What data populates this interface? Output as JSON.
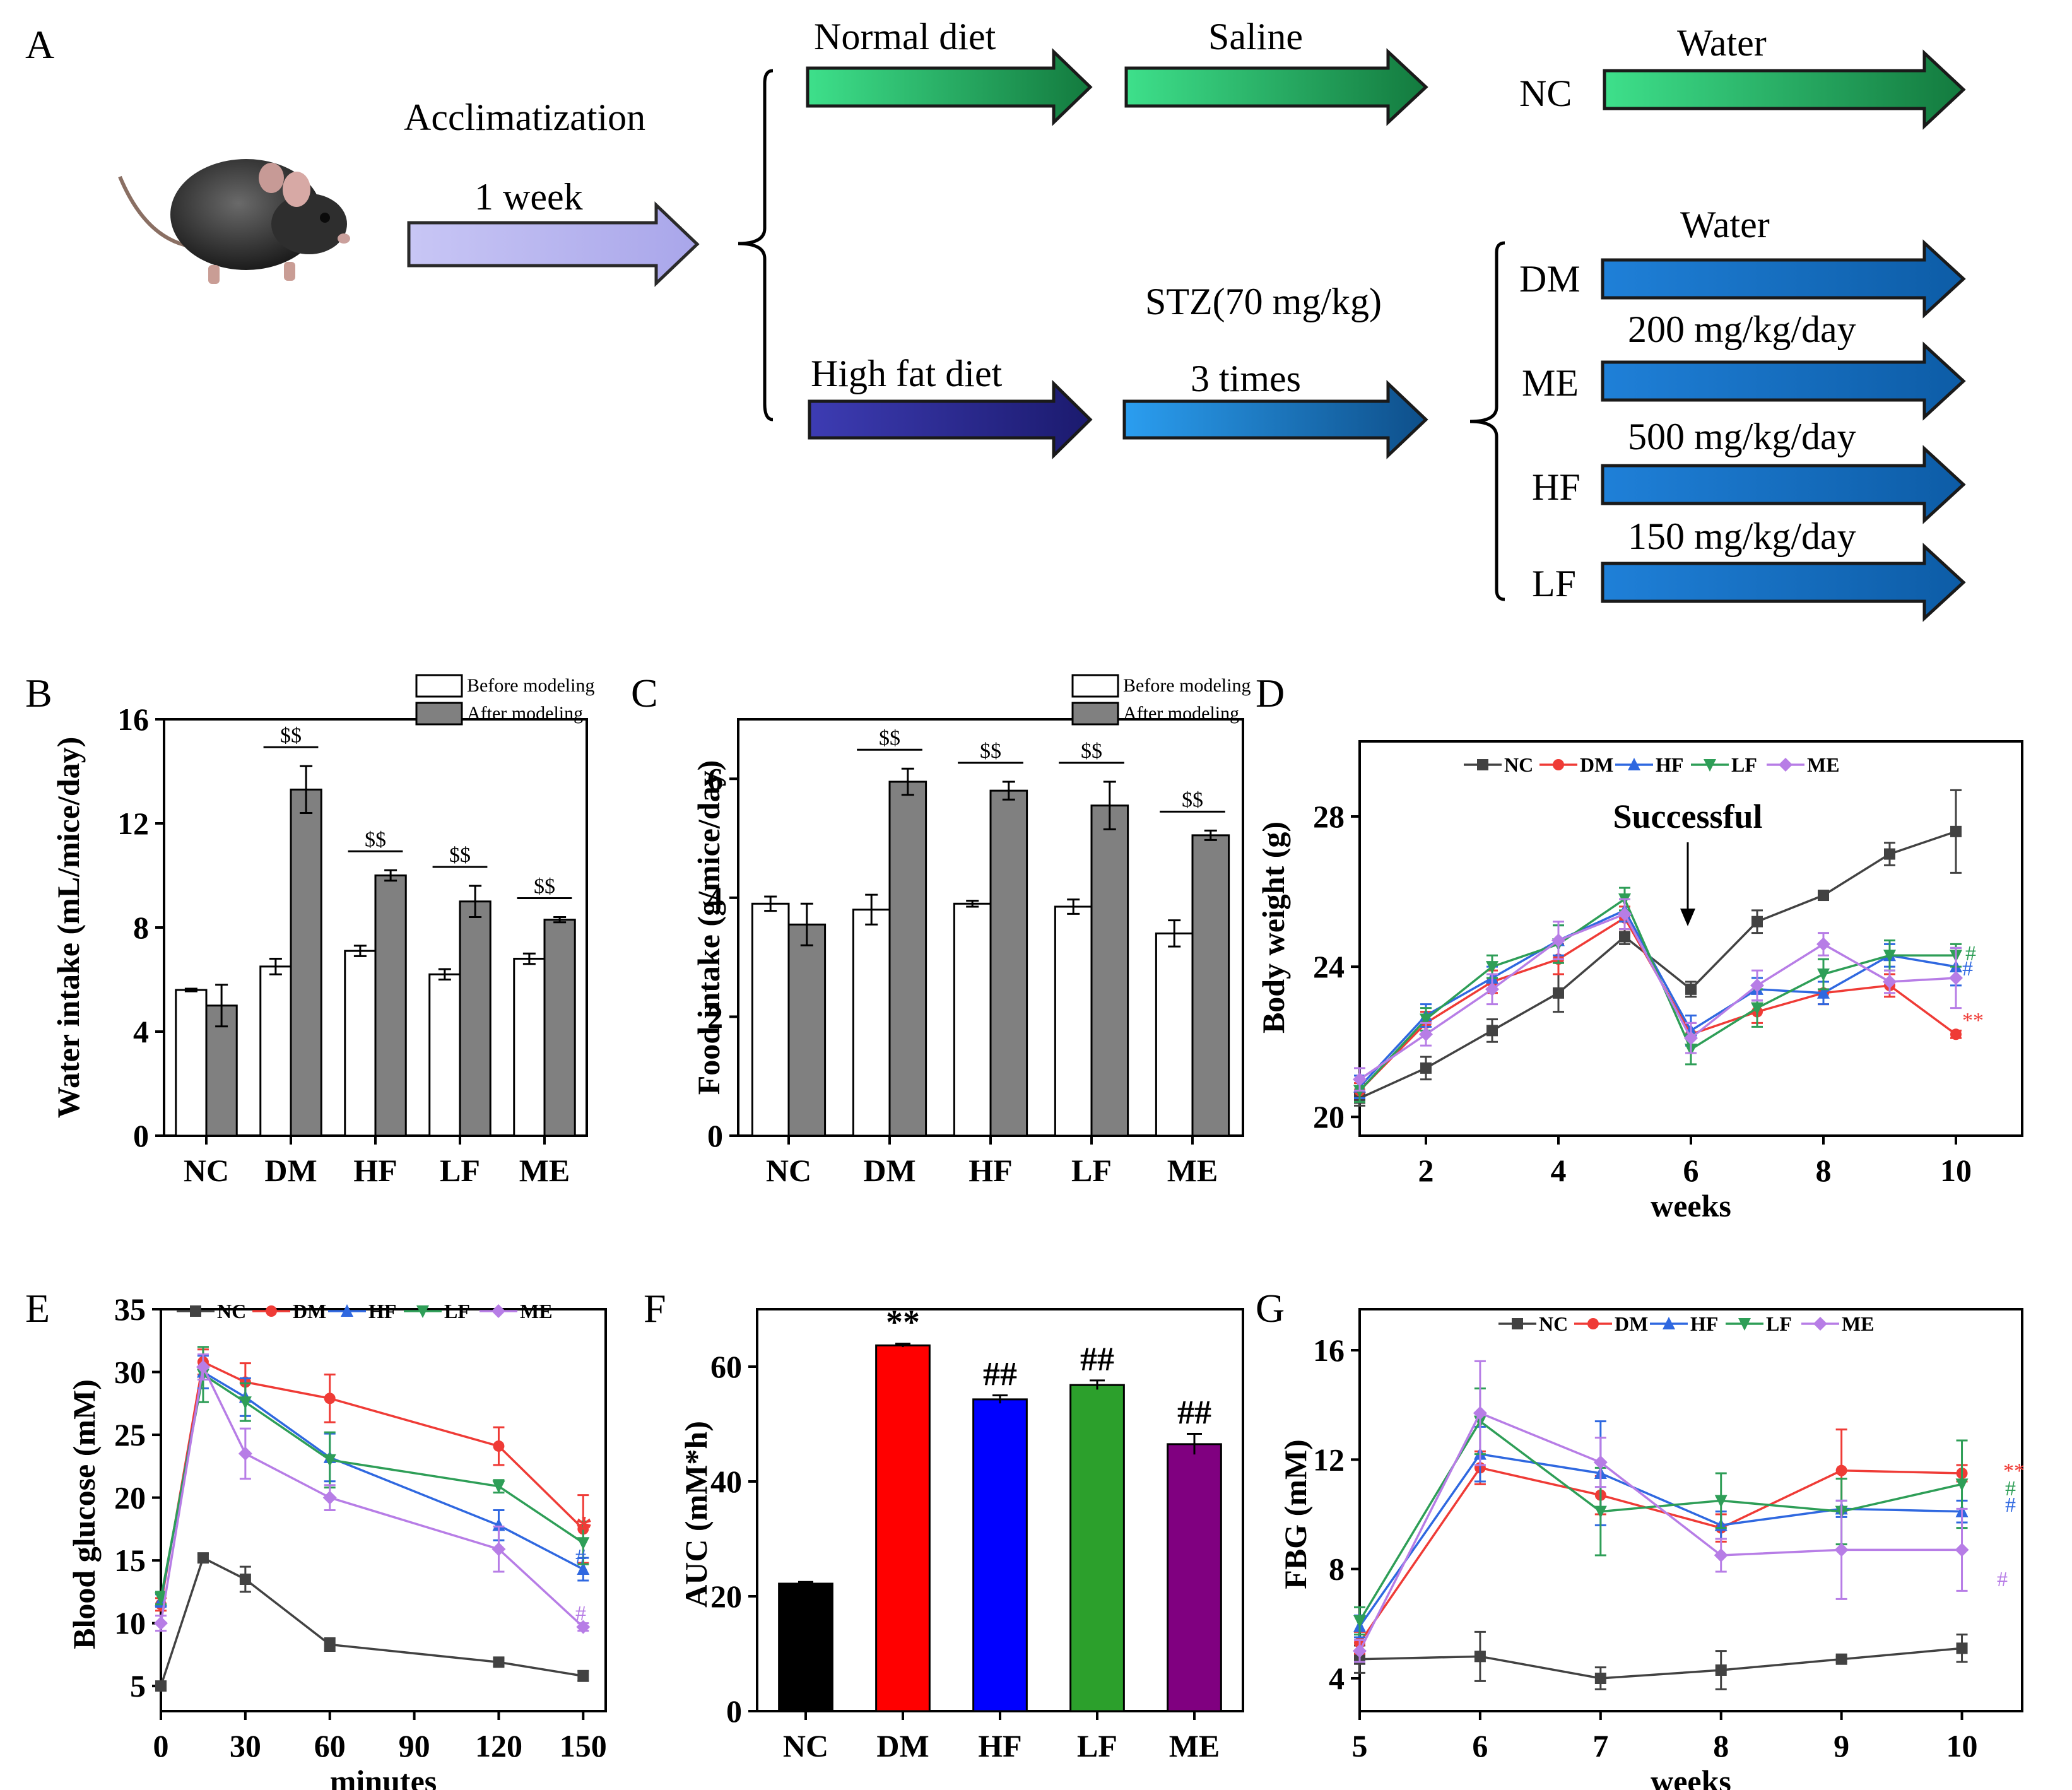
{
  "colors": {
    "NC": "#424242",
    "DM": "#ef3b36",
    "HF": "#2f68e0",
    "LF": "#2e9e57",
    "ME": "#b77de6",
    "green": "#27c16a",
    "navy": "#2b2a95",
    "blue": "#1c7fd1",
    "lav": "#b8b6ef"
  },
  "panelA": {
    "label": "A",
    "acclimatization": "Acclimatization",
    "week": "1 week",
    "normal_diet": "Normal diet",
    "saline": "Saline",
    "nc_label": "NC",
    "nc_water": "Water",
    "high_fat_diet": "High fat diet",
    "stz": "STZ(70 mg/kg)",
    "times": "3 times",
    "dm_water": "Water",
    "dose_me": "200 mg/kg/day",
    "dose_hf": "500 mg/kg/day",
    "dose_lf": "150 mg/kg/day",
    "groups": [
      "DM",
      "ME",
      "HF",
      "LF"
    ]
  },
  "chart_data": [
    {
      "id": "B",
      "type": "bar",
      "title": "",
      "xlabel": "",
      "ylabel": "Water intake (mL/mice/day)",
      "categories": [
        "NC",
        "DM",
        "HF",
        "LF",
        "ME"
      ],
      "ylim": [
        0,
        16
      ],
      "yticks": [
        0,
        4,
        8,
        12,
        16
      ],
      "legend": [
        "Before modeling",
        "After modeling"
      ],
      "series": [
        {
          "name": "Before modeling",
          "values": [
            5.6,
            6.5,
            7.1,
            6.2,
            6.8
          ],
          "err": [
            0.05,
            0.3,
            0.2,
            0.2,
            0.2
          ]
        },
        {
          "name": "After modeling",
          "values": [
            5.0,
            13.3,
            10.0,
            9.0,
            8.3
          ],
          "err": [
            0.8,
            0.9,
            0.2,
            0.6,
            0.1
          ]
        }
      ],
      "annotations": [
        "$$",
        "$$",
        "$$",
        "$$"
      ]
    },
    {
      "id": "C",
      "type": "bar",
      "title": "",
      "xlabel": "",
      "ylabel": "Food intake (g/mice/day)",
      "categories": [
        "NC",
        "DM",
        "HF",
        "LF",
        "ME"
      ],
      "ylim": [
        0,
        7
      ],
      "yticks": [
        0,
        2,
        4,
        6
      ],
      "legend": [
        "Before modeling",
        "After modeling"
      ],
      "series": [
        {
          "name": "Before modeling",
          "values": [
            3.9,
            3.8,
            3.9,
            3.85,
            3.4
          ],
          "err": [
            0.12,
            0.25,
            0.05,
            0.12,
            0.22
          ]
        },
        {
          "name": "After modeling",
          "values": [
            3.55,
            5.95,
            5.8,
            5.55,
            5.05
          ],
          "err": [
            0.35,
            0.22,
            0.15,
            0.4,
            0.08
          ]
        }
      ],
      "annotations": [
        "$$",
        "$$",
        "$$",
        "$$"
      ]
    },
    {
      "id": "D",
      "type": "line",
      "title": "",
      "xlabel": "weeks",
      "ylabel": "Body weight (g)",
      "xlim": [
        1,
        11
      ],
      "ylim": [
        19.5,
        30
      ],
      "xticks": [
        2,
        4,
        6,
        8,
        10
      ],
      "yticks": [
        20,
        24,
        28
      ],
      "x": [
        1,
        2,
        3,
        4,
        5,
        6,
        7,
        8,
        9,
        10
      ],
      "series": [
        {
          "name": "NC",
          "values": [
            20.5,
            21.3,
            22.3,
            23.3,
            24.8,
            23.4,
            25.2,
            25.9,
            27.0,
            27.6
          ],
          "err": [
            0.2,
            0.3,
            0.3,
            0.5,
            0.2,
            0.2,
            0.3,
            0.1,
            0.3,
            1.1
          ]
        },
        {
          "name": "DM",
          "values": [
            20.7,
            22.5,
            23.6,
            24.2,
            25.3,
            22.2,
            22.8,
            23.3,
            23.5,
            22.2
          ],
          "err": [
            0.2,
            0.3,
            0.3,
            0.4,
            0.3,
            0.3,
            0.3,
            0.3,
            0.3,
            0.1
          ]
        },
        {
          "name": "HF",
          "values": [
            20.8,
            22.7,
            23.7,
            24.7,
            25.5,
            22.3,
            23.4,
            23.3,
            24.3,
            24.0
          ],
          "err": [
            0.3,
            0.3,
            0.3,
            0.4,
            0.3,
            0.4,
            0.3,
            0.3,
            0.3,
            0.5
          ]
        },
        {
          "name": "LF",
          "values": [
            20.7,
            22.6,
            24.0,
            24.6,
            25.8,
            21.8,
            22.9,
            23.8,
            24.3,
            24.3
          ],
          "err": [
            0.3,
            0.3,
            0.3,
            0.5,
            0.3,
            0.4,
            0.5,
            0.4,
            0.4,
            0.3
          ]
        },
        {
          "name": "ME",
          "values": [
            21.0,
            22.2,
            23.4,
            24.7,
            25.4,
            22.1,
            23.5,
            24.6,
            23.6,
            23.7
          ],
          "err": [
            0.3,
            0.3,
            0.4,
            0.5,
            0.4,
            0.4,
            0.4,
            0.3,
            0.3,
            0.8
          ]
        }
      ],
      "annotations": [
        "Successful",
        "**",
        "#",
        "#"
      ]
    },
    {
      "id": "E",
      "type": "line",
      "title": "",
      "xlabel": "minutes",
      "ylabel": "Blood glucose (mM)",
      "xlim": [
        0,
        158
      ],
      "ylim": [
        3,
        35
      ],
      "xticks": [
        0,
        30,
        60,
        90,
        120,
        150
      ],
      "yticks": [
        5,
        10,
        15,
        20,
        25,
        30,
        35
      ],
      "x": [
        0,
        15,
        30,
        60,
        120,
        150
      ],
      "series": [
        {
          "name": "NC",
          "values": [
            5.0,
            15.2,
            13.5,
            8.3,
            6.9,
            5.8
          ],
          "err": [
            0.3,
            0.3,
            1.0,
            0.5,
            0.3,
            0.4
          ]
        },
        {
          "name": "DM",
          "values": [
            11.5,
            30.8,
            29.2,
            27.9,
            24.1,
            17.5
          ],
          "err": [
            0.5,
            1.0,
            1.5,
            1.9,
            1.5,
            2.7
          ]
        },
        {
          "name": "HF",
          "values": [
            11.8,
            30.0,
            28.0,
            23.2,
            17.8,
            14.3
          ],
          "err": [
            0.5,
            1.3,
            1.5,
            1.9,
            1.2,
            0.9
          ]
        },
        {
          "name": "LF",
          "values": [
            12.0,
            29.8,
            27.6,
            23.0,
            20.9,
            16.4
          ],
          "err": [
            0.5,
            2.2,
            1.5,
            2.2,
            0.5,
            1.7
          ]
        },
        {
          "name": "ME",
          "values": [
            10.0,
            30.4,
            23.5,
            20.0,
            15.9,
            9.7
          ],
          "err": [
            0.6,
            1.0,
            2.0,
            1.0,
            1.8,
            0.3
          ]
        }
      ],
      "annotations": [
        "*",
        "#",
        "#"
      ]
    },
    {
      "id": "F",
      "type": "bar",
      "title": "",
      "xlabel": "",
      "ylabel": "AUC (mM*h)",
      "categories": [
        "NC",
        "DM",
        "HF",
        "LF",
        "ME"
      ],
      "ylim": [
        0,
        70
      ],
      "yticks": [
        0,
        20,
        40,
        60
      ],
      "values": [
        22.2,
        63.7,
        54.3,
        56.8,
        46.5
      ],
      "err": [
        0.3,
        0.3,
        0.7,
        0.8,
        1.8
      ],
      "bar_colors": [
        "#000000",
        "#ff0000",
        "#0000ff",
        "#2ca02c",
        "#800080"
      ],
      "annotations": [
        "**",
        "##",
        "##",
        "##"
      ]
    },
    {
      "id": "G",
      "type": "line",
      "title": "",
      "xlabel": "weeks",
      "ylabel": "FBG (mM)",
      "xlim": [
        5,
        10.5
      ],
      "ylim": [
        2.8,
        17.5
      ],
      "xticks": [
        5,
        6,
        7,
        8,
        9,
        10
      ],
      "yticks": [
        4,
        8,
        12,
        16
      ],
      "x": [
        5,
        6,
        7,
        8,
        9,
        10
      ],
      "series": [
        {
          "name": "NC",
          "values": [
            4.7,
            4.8,
            4.0,
            4.3,
            4.7,
            5.1
          ],
          "err": [
            0.5,
            0.9,
            0.4,
            0.7,
            0.1,
            0.5
          ]
        },
        {
          "name": "DM",
          "values": [
            5.3,
            11.7,
            10.7,
            9.5,
            11.6,
            11.5
          ],
          "err": [
            0.4,
            0.6,
            0.7,
            0.5,
            1.5,
            0.3
          ]
        },
        {
          "name": "HF",
          "values": [
            5.9,
            12.2,
            11.5,
            9.6,
            10.2,
            10.1
          ],
          "err": [
            0.4,
            1.0,
            1.9,
            0.5,
            0.3,
            0.4
          ]
        },
        {
          "name": "LF",
          "values": [
            6.1,
            13.4,
            10.1,
            10.5,
            10.1,
            11.1
          ],
          "err": [
            0.5,
            1.2,
            1.6,
            1.0,
            1.2,
            1.6
          ]
        },
        {
          "name": "ME",
          "values": [
            5.0,
            13.7,
            11.9,
            8.5,
            8.7,
            8.7
          ],
          "err": [
            0.4,
            1.9,
            0.9,
            0.6,
            1.8,
            1.5
          ]
        }
      ],
      "annotations": [
        "**",
        "#",
        "#",
        "#"
      ]
    }
  ]
}
